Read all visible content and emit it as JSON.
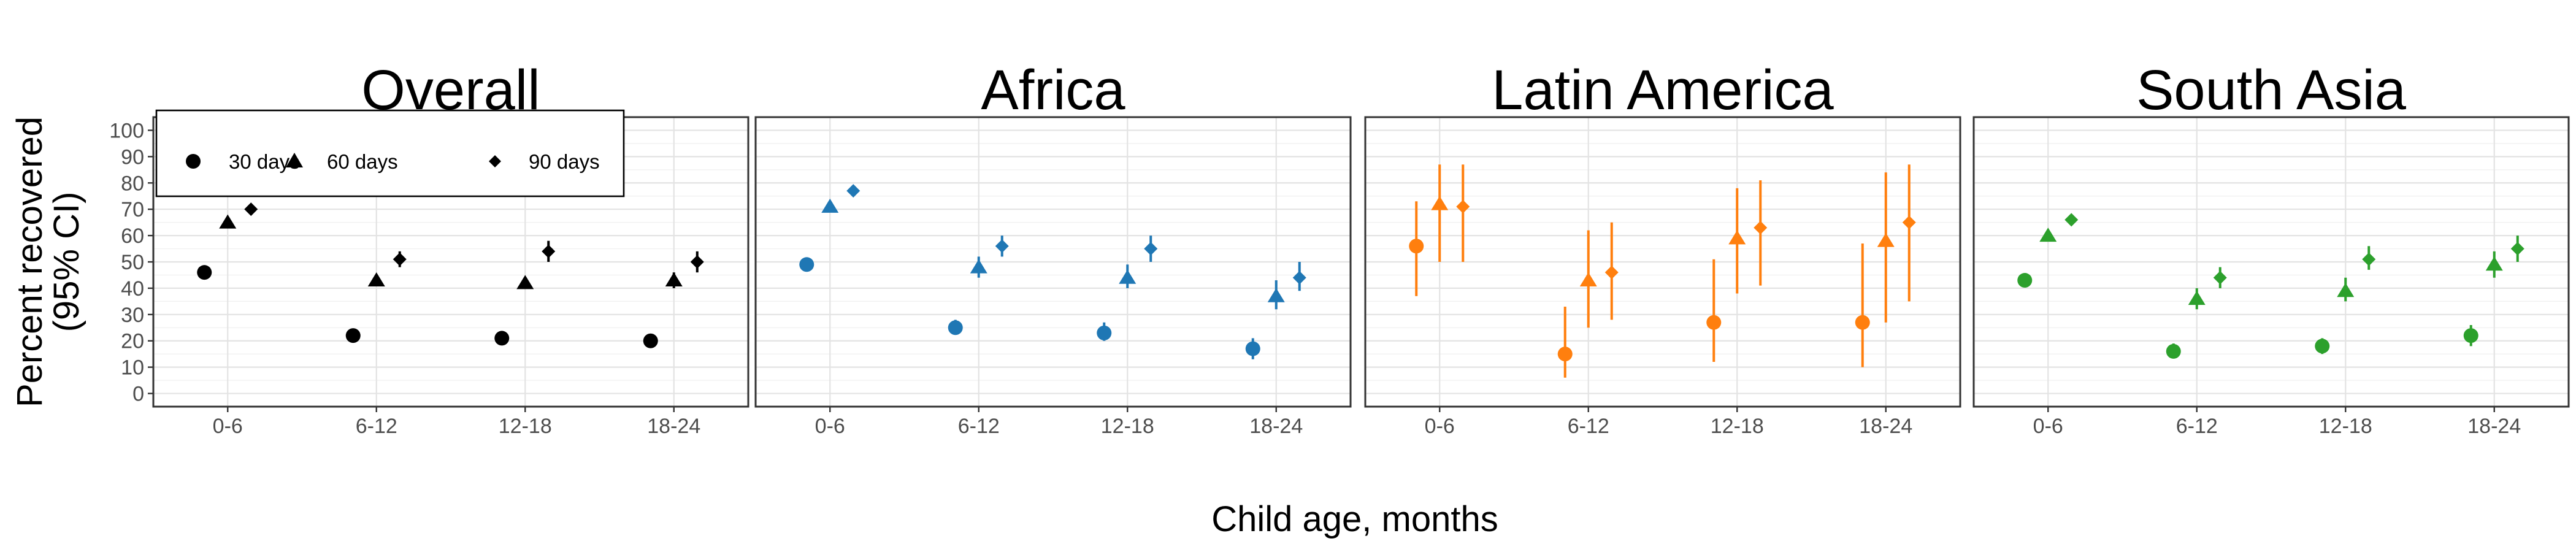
{
  "chart_data": {
    "type": "scatter",
    "xlabel": "Child age, months",
    "ylabel_lines": [
      "Percent recovered",
      "(95% CI)"
    ],
    "categories": [
      "0-6",
      "6-12",
      "12-18",
      "18-24"
    ],
    "yticks": [
      0,
      10,
      20,
      30,
      40,
      50,
      60,
      70,
      80,
      90,
      100
    ],
    "ylim": [
      -5,
      105
    ],
    "grid": true,
    "legend": {
      "placement": "top-left inside Overall panel",
      "entries": [
        {
          "label": "30 days",
          "shape": "circle"
        },
        {
          "label": "60 days",
          "shape": "triangle"
        },
        {
          "label": "90 days",
          "shape": "diamond"
        }
      ]
    },
    "panels": [
      {
        "title": "Overall",
        "color": "#000000",
        "series": [
          {
            "shape": "circle",
            "points": [
              {
                "x": "0-6",
                "y": 46,
                "low": 45,
                "high": 47
              },
              {
                "x": "6-12",
                "y": 22,
                "low": 21,
                "high": 23
              },
              {
                "x": "12-18",
                "y": 21,
                "low": 20,
                "high": 23
              },
              {
                "x": "18-24",
                "y": 20,
                "low": 18,
                "high": 22
              }
            ]
          },
          {
            "shape": "triangle",
            "points": [
              {
                "x": "0-6",
                "y": 65,
                "low": 63,
                "high": 67
              },
              {
                "x": "6-12",
                "y": 43,
                "low": 41,
                "high": 45
              },
              {
                "x": "12-18",
                "y": 42,
                "low": 40,
                "high": 44
              },
              {
                "x": "18-24",
                "y": 43,
                "low": 40,
                "high": 46
              }
            ]
          },
          {
            "shape": "diamond",
            "points": [
              {
                "x": "0-6",
                "y": 70,
                "low": 68,
                "high": 72
              },
              {
                "x": "6-12",
                "y": 51,
                "low": 48,
                "high": 54
              },
              {
                "x": "12-18",
                "y": 54,
                "low": 50,
                "high": 58
              },
              {
                "x": "18-24",
                "y": 50,
                "low": 46,
                "high": 54
              }
            ]
          }
        ]
      },
      {
        "title": "Africa",
        "color": "#1f77b4",
        "series": [
          {
            "shape": "circle",
            "points": [
              {
                "x": "0-6",
                "y": 49,
                "low": 47,
                "high": 51
              },
              {
                "x": "6-12",
                "y": 25,
                "low": 23,
                "high": 28
              },
              {
                "x": "12-18",
                "y": 23,
                "low": 20,
                "high": 27
              },
              {
                "x": "18-24",
                "y": 17,
                "low": 13,
                "high": 21
              }
            ]
          },
          {
            "shape": "triangle",
            "points": [
              {
                "x": "0-6",
                "y": 71,
                "low": 69,
                "high": 73
              },
              {
                "x": "6-12",
                "y": 48,
                "low": 44,
                "high": 52
              },
              {
                "x": "12-18",
                "y": 44,
                "low": 40,
                "high": 49
              },
              {
                "x": "18-24",
                "y": 37,
                "low": 32,
                "high": 43
              }
            ]
          },
          {
            "shape": "diamond",
            "points": [
              {
                "x": "0-6",
                "y": 77,
                "low": 75,
                "high": 79
              },
              {
                "x": "6-12",
                "y": 56,
                "low": 52,
                "high": 60
              },
              {
                "x": "12-18",
                "y": 55,
                "low": 50,
                "high": 60
              },
              {
                "x": "18-24",
                "y": 44,
                "low": 39,
                "high": 50
              }
            ]
          }
        ]
      },
      {
        "title": "Latin America",
        "color": "#ff7f0e",
        "series": [
          {
            "shape": "circle",
            "points": [
              {
                "x": "0-6",
                "y": 56,
                "low": 37,
                "high": 73
              },
              {
                "x": "6-12",
                "y": 15,
                "low": 6,
                "high": 33
              },
              {
                "x": "12-18",
                "y": 27,
                "low": 12,
                "high": 51
              },
              {
                "x": "18-24",
                "y": 27,
                "low": 10,
                "high": 57
              }
            ]
          },
          {
            "shape": "triangle",
            "points": [
              {
                "x": "0-6",
                "y": 72,
                "low": 50,
                "high": 87
              },
              {
                "x": "6-12",
                "y": 43,
                "low": 25,
                "high": 62
              },
              {
                "x": "12-18",
                "y": 59,
                "low": 38,
                "high": 78
              },
              {
                "x": "18-24",
                "y": 58,
                "low": 27,
                "high": 84
              }
            ]
          },
          {
            "shape": "diamond",
            "points": [
              {
                "x": "0-6",
                "y": 71,
                "low": 50,
                "high": 87
              },
              {
                "x": "6-12",
                "y": 46,
                "low": 28,
                "high": 65
              },
              {
                "x": "12-18",
                "y": 63,
                "low": 41,
                "high": 81
              },
              {
                "x": "18-24",
                "y": 65,
                "low": 35,
                "high": 87
              }
            ]
          }
        ]
      },
      {
        "title": "South Asia",
        "color": "#2ca02c",
        "series": [
          {
            "shape": "circle",
            "points": [
              {
                "x": "0-6",
                "y": 43,
                "low": 42,
                "high": 44
              },
              {
                "x": "6-12",
                "y": 16,
                "low": 14,
                "high": 19
              },
              {
                "x": "12-18",
                "y": 18,
                "low": 15,
                "high": 21
              },
              {
                "x": "18-24",
                "y": 22,
                "low": 18,
                "high": 26
              }
            ]
          },
          {
            "shape": "triangle",
            "points": [
              {
                "x": "0-6",
                "y": 60,
                "low": 58,
                "high": 62
              },
              {
                "x": "6-12",
                "y": 36,
                "low": 32,
                "high": 40
              },
              {
                "x": "12-18",
                "y": 39,
                "low": 35,
                "high": 44
              },
              {
                "x": "18-24",
                "y": 49,
                "low": 44,
                "high": 54
              }
            ]
          },
          {
            "shape": "diamond",
            "points": [
              {
                "x": "0-6",
                "y": 66,
                "low": 64,
                "high": 68
              },
              {
                "x": "6-12",
                "y": 44,
                "low": 40,
                "high": 48
              },
              {
                "x": "12-18",
                "y": 51,
                "low": 47,
                "high": 56
              },
              {
                "x": "18-24",
                "y": 55,
                "low": 50,
                "high": 60
              }
            ]
          }
        ]
      }
    ]
  }
}
